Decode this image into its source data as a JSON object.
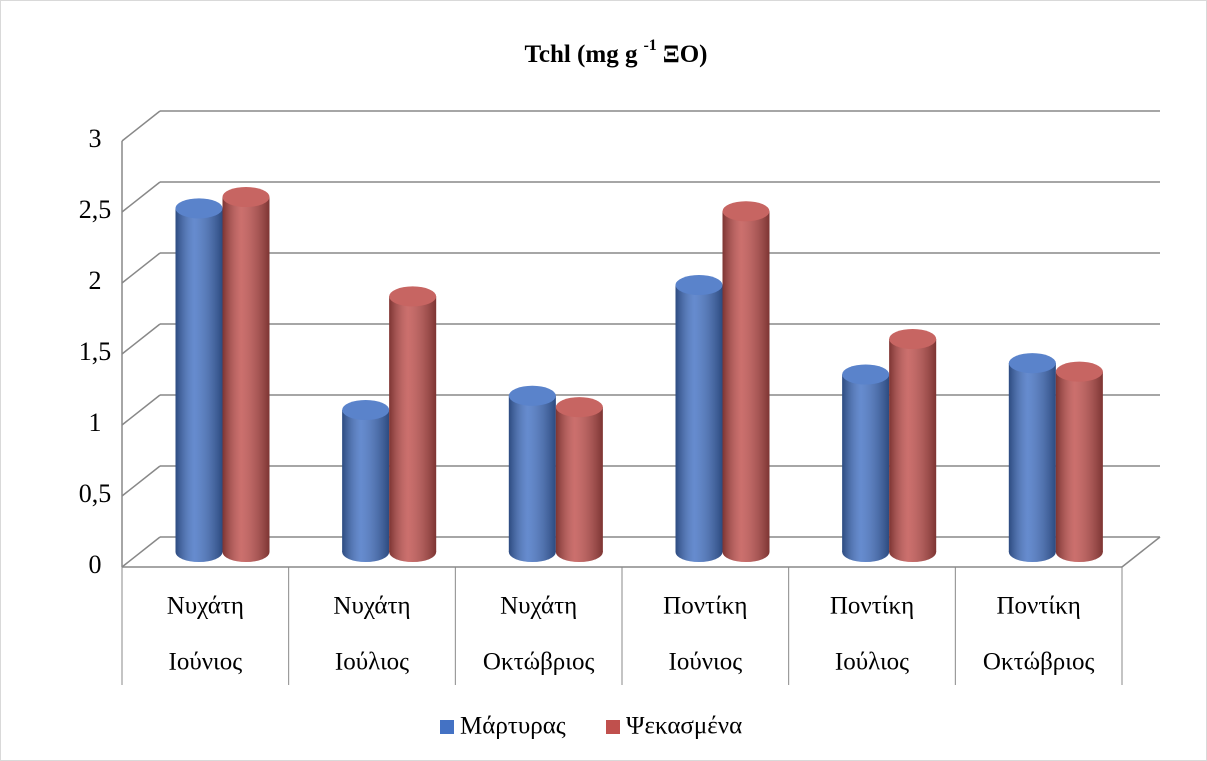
{
  "chart_data": {
    "type": "bar",
    "title": [
      "Tchl (mg g",
      "-1",
      "ΞΟ)"
    ],
    "categories": [
      [
        "Νυχάτη",
        "Ιούνιος"
      ],
      [
        "Νυχάτη",
        "Ιούλιος"
      ],
      [
        "Νυχάτη",
        "Οκτώβριος"
      ],
      [
        "Ποντίκη",
        "Ιούνιος"
      ],
      [
        "Ποντίκη",
        "Ιούλιος"
      ],
      [
        "Ποντίκη",
        "Οκτώβριος"
      ]
    ],
    "series": [
      {
        "name": "Μάρτυρας",
        "color": "#4472c4",
        "values": [
          2.42,
          1.0,
          1.1,
          1.88,
          1.25,
          1.33
        ]
      },
      {
        "name": "Ψεκασμένα",
        "color": "#c0504d",
        "values": [
          2.5,
          1.8,
          1.02,
          2.4,
          1.5,
          1.27
        ]
      }
    ],
    "ylim": [
      0,
      3
    ],
    "yticks": [
      0,
      {
        "value": 0.5,
        "label": "0,5"
      },
      1,
      {
        "value": 1.5,
        "label": "1,5"
      },
      2,
      {
        "value": 2.5,
        "label": "2,5"
      },
      3
    ],
    "grid": true
  }
}
